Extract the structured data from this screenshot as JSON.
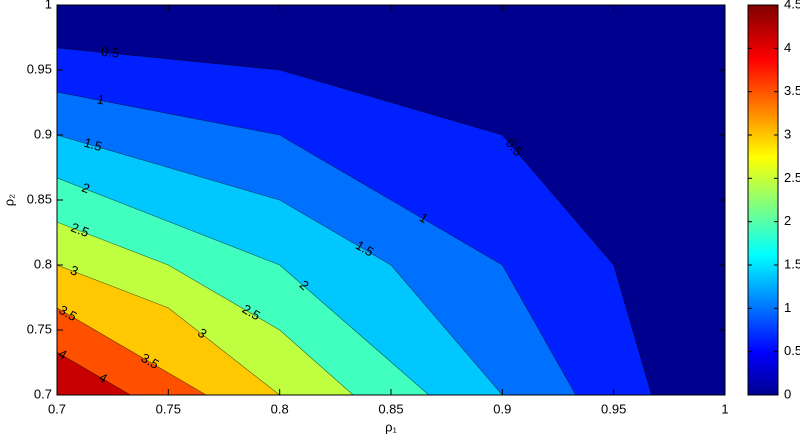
{
  "chart_data": {
    "type": "contour",
    "xlabel": "ρ₁",
    "ylabel": "ρ₂",
    "xlim": [
      0.7,
      1
    ],
    "ylim": [
      0.7,
      1
    ],
    "xticks": [
      0.7,
      0.75,
      0.8,
      0.85,
      0.9,
      0.95,
      1
    ],
    "yticks": [
      0.7,
      0.75,
      0.8,
      0.85,
      0.9,
      0.95,
      1
    ],
    "clim": [
      0,
      4.5
    ],
    "cticks": [
      0,
      0.5,
      1,
      1.5,
      2,
      2.5,
      3,
      3.5,
      4,
      4.5
    ],
    "band_colors": [
      "#00008f",
      "#0020ff",
      "#0070ff",
      "#00c8ff",
      "#40ffbf",
      "#bfff40",
      "#ffc800",
      "#ff5000",
      "#c80000"
    ],
    "contours": [
      {
        "level": 0.5,
        "x": [
          0.7,
          0.8,
          0.9,
          0.95,
          0.967
        ],
        "y": [
          0.967,
          0.95,
          0.9,
          0.8,
          0.7
        ]
      },
      {
        "level": 1,
        "x": [
          0.7,
          0.8,
          0.9,
          0.933
        ],
        "y": [
          0.933,
          0.9,
          0.8,
          0.7
        ]
      },
      {
        "level": 1.5,
        "x": [
          0.7,
          0.8,
          0.85,
          0.9
        ],
        "y": [
          0.9,
          0.85,
          0.8,
          0.7
        ]
      },
      {
        "level": 2,
        "x": [
          0.7,
          0.8,
          0.867
        ],
        "y": [
          0.867,
          0.8,
          0.7
        ]
      },
      {
        "level": 2.5,
        "x": [
          0.7,
          0.75,
          0.8,
          0.833
        ],
        "y": [
          0.833,
          0.8,
          0.75,
          0.7
        ]
      },
      {
        "level": 3,
        "x": [
          0.7,
          0.75,
          0.8
        ],
        "y": [
          0.8,
          0.767,
          0.7
        ]
      },
      {
        "level": 3.5,
        "x": [
          0.7,
          0.767
        ],
        "y": [
          0.767,
          0.7
        ]
      },
      {
        "level": 4,
        "x": [
          0.7,
          0.733
        ],
        "y": [
          0.733,
          0.7
        ]
      }
    ]
  }
}
